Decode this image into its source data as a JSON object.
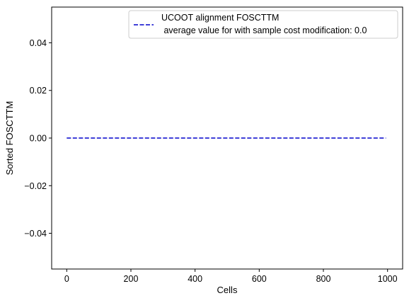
{
  "chart_data": {
    "type": "line",
    "xlabel": "Cells",
    "ylabel": "Sorted FOSCTTM",
    "xlim": [
      -47,
      1047
    ],
    "ylim": [
      -0.055,
      0.055
    ],
    "xticks": [
      0,
      200,
      400,
      600,
      800,
      1000
    ],
    "xtick_labels": [
      "0",
      "200",
      "400",
      "600",
      "800",
      "1000"
    ],
    "yticks": [
      -0.04,
      -0.02,
      0.0,
      0.02,
      0.04
    ],
    "ytick_labels": [
      "−0.04",
      "−0.02",
      "0.00",
      "0.02",
      "0.04"
    ],
    "grid": false,
    "legend_position": "top-right",
    "series": [
      {
        "name": "UCOOT alignment FOSCTTM\n average value for with sample cost modification: 0.0",
        "legend_line1": "UCOOT alignment FOSCTTM",
        "legend_line2": " average value for with sample cost modification: 0.0",
        "color": "#0000cc",
        "line_style": "dashed",
        "x": [
          0,
          995
        ],
        "y": [
          0.0,
          0.0
        ]
      }
    ]
  }
}
